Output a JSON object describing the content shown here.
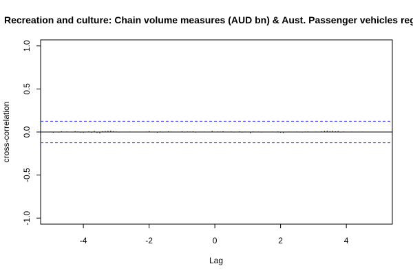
{
  "chart_data": {
    "type": "bar",
    "title": "Recreation and culture: Chain volume measures (AUD bn) & Aust. Passenger vehicles regi",
    "xlabel": "Lag",
    "ylabel": "cross-correlation",
    "xlim": [
      -5.3,
      5.4
    ],
    "ylim": [
      -1.07,
      1.07
    ],
    "x_ticks": [
      -4,
      -2,
      0,
      2,
      4
    ],
    "x_tick_labels": [
      "-4",
      "-2",
      "0",
      "2",
      "4"
    ],
    "y_ticks": [
      -1.0,
      -0.5,
      0.0,
      0.5,
      1.0
    ],
    "y_tick_labels": [
      "-1.0",
      "-0.5",
      "0.0",
      "0.5",
      "1.0"
    ],
    "confidence_band": 0.125,
    "colors": {
      "lines": "#000000",
      "band": "#3333ff",
      "zero": "#000000"
    },
    "grid": false,
    "lag_step": 0.0833333,
    "values": [
      0.005,
      -0.008,
      0.004,
      -0.006,
      0.008,
      -0.004,
      0.006,
      0.003,
      -0.005,
      0.009,
      0.006,
      -0.007,
      -0.009,
      0.004,
      0.007,
      -0.008,
      0.012,
      -0.01,
      -0.015,
      0.009,
      0.011,
      0.014,
      0.016,
      0.01,
      0.006,
      -0.005,
      0.004,
      0.003,
      -0.004,
      0.005,
      -0.003,
      0.004,
      -0.002,
      0.003,
      -0.004,
      0.005,
      0.01,
      -0.003,
      0.004,
      -0.008,
      0.006,
      -0.005,
      0.004,
      0.007,
      0.005,
      -0.004,
      -0.003,
      0.004,
      0.008,
      -0.005,
      0.006,
      0.005,
      0.007,
      -0.006,
      0.004,
      -0.003,
      0.005,
      -0.004,
      0.003,
      0.012,
      -0.004,
      0.006,
      0.005,
      0.008,
      -0.003,
      0.004,
      0.006,
      -0.005,
      0.003,
      0.007,
      -0.006,
      0.005,
      0.004,
      -0.014,
      0.006,
      0.003,
      0.005,
      -0.005,
      0.004,
      0.004,
      0.003,
      0.005,
      -0.004,
      0.006,
      -0.008,
      -0.012,
      0.004,
      0.005,
      0.003,
      -0.004,
      0.005,
      0.004,
      -0.005,
      0.005,
      0.006,
      -0.004,
      -0.003,
      0.005,
      0.004,
      0.007,
      0.012,
      0.015,
      0.01,
      0.013,
      0.008,
      0.011,
      -0.005,
      0.006,
      0.004,
      -0.003,
      0.005,
      0.003,
      -0.004,
      0.004,
      0.005,
      -0.003,
      0.004,
      0.003,
      -0.002,
      0.004,
      0.003
    ]
  }
}
